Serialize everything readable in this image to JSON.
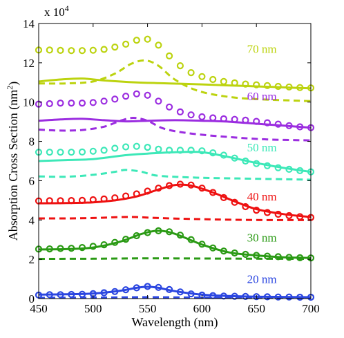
{
  "chart_data": {
    "type": "line",
    "title": "",
    "xlabel": "Wavelength (nm)",
    "ylabel": "Absorption Cross Section (nm",
    "ylabel_superscript": "2",
    "ylabel_close": ")",
    "y_multiplier_base": "x 10",
    "y_multiplier_exp": "4",
    "xlim": [
      450,
      700
    ],
    "ylim": [
      0,
      14
    ],
    "xticks": [
      450,
      500,
      550,
      600,
      650,
      700
    ],
    "yticks": [
      0,
      2,
      4,
      6,
      8,
      10,
      12,
      14
    ],
    "grid": false,
    "legend": "none",
    "series": [
      {
        "name": "20 nm",
        "color": "#2b46e0",
        "solid": [
          [
            450,
            0.2
          ],
          [
            475,
            0.22
          ],
          [
            500,
            0.26
          ],
          [
            525,
            0.4
          ],
          [
            540,
            0.55
          ],
          [
            550,
            0.6
          ],
          [
            560,
            0.55
          ],
          [
            575,
            0.38
          ],
          [
            600,
            0.2
          ],
          [
            625,
            0.13
          ],
          [
            650,
            0.1
          ],
          [
            700,
            0.07
          ]
        ],
        "dashed": [
          [
            450,
            0.04
          ],
          [
            500,
            0.05
          ],
          [
            550,
            0.07
          ],
          [
            600,
            0.05
          ],
          [
            650,
            0.04
          ],
          [
            700,
            0.03
          ]
        ],
        "circles": [
          [
            450,
            0.18
          ],
          [
            460,
            0.2
          ],
          [
            470,
            0.2
          ],
          [
            480,
            0.21
          ],
          [
            490,
            0.22
          ],
          [
            500,
            0.25
          ],
          [
            510,
            0.3
          ],
          [
            520,
            0.36
          ],
          [
            530,
            0.45
          ],
          [
            540,
            0.55
          ],
          [
            550,
            0.62
          ],
          [
            560,
            0.57
          ],
          [
            570,
            0.46
          ],
          [
            580,
            0.34
          ],
          [
            590,
            0.24
          ],
          [
            600,
            0.18
          ],
          [
            610,
            0.15
          ],
          [
            620,
            0.13
          ],
          [
            630,
            0.12
          ],
          [
            640,
            0.11
          ],
          [
            650,
            0.1
          ],
          [
            660,
            0.09
          ],
          [
            670,
            0.08
          ],
          [
            680,
            0.08
          ],
          [
            690,
            0.07
          ],
          [
            700,
            0.07
          ]
        ]
      },
      {
        "name": "30 nm",
        "color": "#2a9a14",
        "solid": [
          [
            450,
            2.5
          ],
          [
            475,
            2.52
          ],
          [
            500,
            2.6
          ],
          [
            525,
            2.9
          ],
          [
            545,
            3.3
          ],
          [
            560,
            3.45
          ],
          [
            575,
            3.3
          ],
          [
            600,
            2.75
          ],
          [
            625,
            2.35
          ],
          [
            650,
            2.2
          ],
          [
            675,
            2.1
          ],
          [
            700,
            2.07
          ]
        ],
        "dashed": [
          [
            450,
            2.02
          ],
          [
            500,
            2.03
          ],
          [
            550,
            2.05
          ],
          [
            600,
            2.04
          ],
          [
            650,
            2.03
          ],
          [
            700,
            2.02
          ]
        ],
        "circles": [
          [
            450,
            2.52
          ],
          [
            460,
            2.53
          ],
          [
            470,
            2.55
          ],
          [
            480,
            2.56
          ],
          [
            490,
            2.6
          ],
          [
            500,
            2.66
          ],
          [
            510,
            2.74
          ],
          [
            520,
            2.86
          ],
          [
            530,
            3.02
          ],
          [
            540,
            3.2
          ],
          [
            550,
            3.36
          ],
          [
            560,
            3.45
          ],
          [
            570,
            3.4
          ],
          [
            580,
            3.23
          ],
          [
            590,
            3.0
          ],
          [
            600,
            2.77
          ],
          [
            610,
            2.58
          ],
          [
            620,
            2.42
          ],
          [
            630,
            2.32
          ],
          [
            640,
            2.25
          ],
          [
            650,
            2.2
          ],
          [
            660,
            2.16
          ],
          [
            670,
            2.13
          ],
          [
            680,
            2.1
          ],
          [
            690,
            2.08
          ],
          [
            700,
            2.07
          ]
        ]
      },
      {
        "name": "40 nm",
        "color": "#ee1111",
        "solid": [
          [
            450,
            4.85
          ],
          [
            475,
            4.86
          ],
          [
            500,
            4.9
          ],
          [
            520,
            5.0
          ],
          [
            540,
            5.2
          ],
          [
            560,
            5.55
          ],
          [
            575,
            5.78
          ],
          [
            590,
            5.75
          ],
          [
            610,
            5.4
          ],
          [
            630,
            4.95
          ],
          [
            650,
            4.55
          ],
          [
            675,
            4.3
          ],
          [
            700,
            4.15
          ]
        ],
        "dashed": [
          [
            450,
            4.08
          ],
          [
            475,
            4.08
          ],
          [
            500,
            4.1
          ],
          [
            525,
            4.15
          ],
          [
            540,
            4.15
          ],
          [
            560,
            4.1
          ],
          [
            600,
            4.04
          ],
          [
            650,
            4.0
          ],
          [
            700,
            4.0
          ]
        ],
        "circles": [
          [
            450,
            4.97
          ],
          [
            460,
            4.98
          ],
          [
            470,
            4.98
          ],
          [
            480,
            4.99
          ],
          [
            490,
            5.0
          ],
          [
            500,
            5.03
          ],
          [
            510,
            5.07
          ],
          [
            520,
            5.13
          ],
          [
            530,
            5.22
          ],
          [
            540,
            5.33
          ],
          [
            550,
            5.47
          ],
          [
            560,
            5.62
          ],
          [
            570,
            5.75
          ],
          [
            580,
            5.82
          ],
          [
            590,
            5.78
          ],
          [
            600,
            5.62
          ],
          [
            610,
            5.4
          ],
          [
            620,
            5.14
          ],
          [
            630,
            4.9
          ],
          [
            640,
            4.68
          ],
          [
            650,
            4.5
          ],
          [
            660,
            4.38
          ],
          [
            670,
            4.29
          ],
          [
            680,
            4.22
          ],
          [
            690,
            4.17
          ],
          [
            700,
            4.13
          ]
        ]
      },
      {
        "name": "50 nm",
        "color": "#3de8b8",
        "solid": [
          [
            450,
            7.0
          ],
          [
            475,
            7.05
          ],
          [
            500,
            7.1
          ],
          [
            530,
            7.3
          ],
          [
            550,
            7.38
          ],
          [
            575,
            7.45
          ],
          [
            600,
            7.45
          ],
          [
            625,
            7.2
          ],
          [
            650,
            6.9
          ],
          [
            675,
            6.65
          ],
          [
            700,
            6.45
          ]
        ],
        "dashed": [
          [
            450,
            6.22
          ],
          [
            475,
            6.2
          ],
          [
            500,
            6.3
          ],
          [
            520,
            6.45
          ],
          [
            530,
            6.55
          ],
          [
            545,
            6.45
          ],
          [
            560,
            6.25
          ],
          [
            600,
            6.15
          ],
          [
            650,
            6.1
          ],
          [
            700,
            6.05
          ]
        ],
        "circles": [
          [
            450,
            7.45
          ],
          [
            460,
            7.45
          ],
          [
            470,
            7.45
          ],
          [
            480,
            7.45
          ],
          [
            490,
            7.46
          ],
          [
            500,
            7.5
          ],
          [
            510,
            7.55
          ],
          [
            520,
            7.65
          ],
          [
            530,
            7.72
          ],
          [
            540,
            7.75
          ],
          [
            550,
            7.7
          ],
          [
            560,
            7.6
          ],
          [
            570,
            7.55
          ],
          [
            580,
            7.55
          ],
          [
            590,
            7.55
          ],
          [
            600,
            7.52
          ],
          [
            610,
            7.42
          ],
          [
            620,
            7.3
          ],
          [
            630,
            7.15
          ],
          [
            640,
            7.0
          ],
          [
            650,
            6.87
          ],
          [
            660,
            6.76
          ],
          [
            670,
            6.66
          ],
          [
            680,
            6.58
          ],
          [
            690,
            6.51
          ],
          [
            700,
            6.45
          ]
        ]
      },
      {
        "name": "60 nm",
        "color": "#9b2de0",
        "solid": [
          [
            450,
            9.05
          ],
          [
            470,
            9.12
          ],
          [
            490,
            9.15
          ],
          [
            510,
            9.08
          ],
          [
            530,
            9.02
          ],
          [
            550,
            9.05
          ],
          [
            575,
            9.08
          ],
          [
            600,
            9.05
          ],
          [
            625,
            9.0
          ],
          [
            650,
            8.9
          ],
          [
            675,
            8.8
          ],
          [
            700,
            8.7
          ]
        ],
        "dashed": [
          [
            450,
            8.6
          ],
          [
            470,
            8.55
          ],
          [
            490,
            8.58
          ],
          [
            510,
            8.75
          ],
          [
            525,
            9.05
          ],
          [
            537,
            9.2
          ],
          [
            550,
            9.05
          ],
          [
            565,
            8.65
          ],
          [
            590,
            8.4
          ],
          [
            625,
            8.22
          ],
          [
            660,
            8.1
          ],
          [
            700,
            8.05
          ]
        ],
        "circles": [
          [
            450,
            9.9
          ],
          [
            460,
            9.92
          ],
          [
            470,
            9.95
          ],
          [
            480,
            9.95
          ],
          [
            490,
            9.95
          ],
          [
            500,
            9.98
          ],
          [
            510,
            10.05
          ],
          [
            520,
            10.15
          ],
          [
            530,
            10.3
          ],
          [
            540,
            10.42
          ],
          [
            550,
            10.35
          ],
          [
            560,
            10.05
          ],
          [
            570,
            9.75
          ],
          [
            580,
            9.5
          ],
          [
            590,
            9.35
          ],
          [
            600,
            9.25
          ],
          [
            610,
            9.2
          ],
          [
            620,
            9.15
          ],
          [
            630,
            9.12
          ],
          [
            640,
            9.08
          ],
          [
            650,
            9.02
          ],
          [
            660,
            8.95
          ],
          [
            670,
            8.88
          ],
          [
            680,
            8.8
          ],
          [
            690,
            8.74
          ],
          [
            700,
            8.7
          ]
        ]
      },
      {
        "name": "70 nm",
        "color": "#bcd30f",
        "solid": [
          [
            450,
            11.05
          ],
          [
            470,
            11.15
          ],
          [
            490,
            11.2
          ],
          [
            510,
            11.1
          ],
          [
            540,
            11.0
          ],
          [
            570,
            10.95
          ],
          [
            600,
            10.9
          ],
          [
            625,
            10.85
          ],
          [
            650,
            10.8
          ],
          [
            675,
            10.75
          ],
          [
            700,
            10.7
          ]
        ],
        "dashed": [
          [
            450,
            10.95
          ],
          [
            475,
            10.95
          ],
          [
            500,
            11.05
          ],
          [
            520,
            11.45
          ],
          [
            535,
            11.95
          ],
          [
            548,
            12.12
          ],
          [
            560,
            11.85
          ],
          [
            575,
            11.15
          ],
          [
            595,
            10.6
          ],
          [
            620,
            10.3
          ],
          [
            650,
            10.15
          ],
          [
            700,
            10.05
          ]
        ],
        "circles": [
          [
            450,
            12.65
          ],
          [
            460,
            12.65
          ],
          [
            470,
            12.63
          ],
          [
            480,
            12.62
          ],
          [
            490,
            12.62
          ],
          [
            500,
            12.64
          ],
          [
            510,
            12.68
          ],
          [
            520,
            12.8
          ],
          [
            530,
            12.95
          ],
          [
            540,
            13.15
          ],
          [
            550,
            13.2
          ],
          [
            560,
            12.9
          ],
          [
            570,
            12.35
          ],
          [
            580,
            11.85
          ],
          [
            590,
            11.5
          ],
          [
            600,
            11.3
          ],
          [
            610,
            11.15
          ],
          [
            620,
            11.05
          ],
          [
            630,
            10.98
          ],
          [
            640,
            10.92
          ],
          [
            650,
            10.88
          ],
          [
            660,
            10.84
          ],
          [
            670,
            10.8
          ],
          [
            680,
            10.77
          ],
          [
            690,
            10.74
          ],
          [
            700,
            10.72
          ]
        ]
      }
    ],
    "annotations": [
      {
        "text": "70 nm",
        "x": 655,
        "y": 12.5,
        "color": "#bcd30f"
      },
      {
        "text": "60 nm",
        "x": 655,
        "y": 10.1,
        "color": "#9b2de0"
      },
      {
        "text": "50 nm",
        "x": 655,
        "y": 7.5,
        "color": "#3de8b8"
      },
      {
        "text": "40 nm",
        "x": 655,
        "y": 5.0,
        "color": "#ee1111"
      },
      {
        "text": "30 nm",
        "x": 655,
        "y": 2.9,
        "color": "#2a9a14"
      },
      {
        "text": "20 nm",
        "x": 655,
        "y": 0.8,
        "color": "#2b46e0"
      }
    ]
  }
}
